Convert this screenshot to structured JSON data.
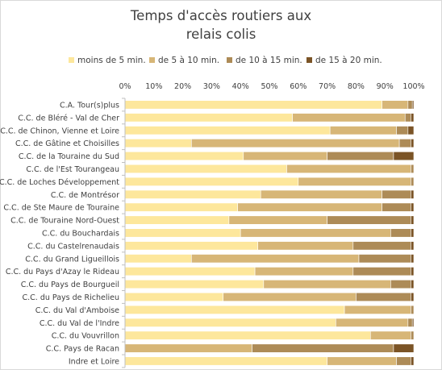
{
  "chart_data": {
    "type": "bar",
    "orientation": "horizontal",
    "stacked": true,
    "percent": true,
    "title": "Temps d'accès routiers aux relais colis",
    "title_lines": [
      "Temps d'accès routiers aux",
      "relais colis"
    ],
    "xlim": [
      0,
      100
    ],
    "x_ticks": [
      "0%",
      "10%",
      "20%",
      "30%",
      "40%",
      "50%",
      "60%",
      "70%",
      "80%",
      "90%",
      "100%"
    ],
    "legend_position": "top",
    "grid": false,
    "categories": [
      "C.A. Tour(s)plus",
      "C.C. de Bléré - Val de Cher",
      "C.C. de Chinon, Vienne et Loire",
      "C.C. de Gâtine et Choisilles",
      "C.C. de la Touraine du Sud",
      "C.C. de l'Est Tourangeau",
      "C.C. de Loches Développement",
      "C.C. de Montrésor",
      "C.C. de Ste Maure de Touraine",
      "C.C. de Touraine Nord-Ouest",
      "C.C. du Bouchardais",
      "C.C. du Castelrenaudais",
      "C.C. du Grand Ligueillois",
      "C.C. du Pays d'Azay le Rideau",
      "C.C. du Pays de Bourgueil",
      "C.C. du Pays de Richelieu",
      "C.C. du Val d'Amboise",
      "C.C. du Val de l'Indre",
      "C.C. du Vouvrillon",
      "C.C. Pays de Racan",
      "Indre et Loire"
    ],
    "series": [
      {
        "name": "moins de 5 min.",
        "color": "#fde79c",
        "values": [
          89,
          58,
          71,
          23,
          41,
          56,
          60,
          47,
          39,
          36,
          40,
          46,
          23,
          45,
          48,
          34,
          76,
          73,
          85,
          0,
          70
        ]
      },
      {
        "name": "de 5 à 10 min.",
        "color": "#d7b677",
        "values": [
          9,
          39,
          23,
          72,
          29,
          43,
          39,
          42,
          50,
          34,
          52,
          33,
          58,
          34,
          44,
          46,
          23,
          25,
          14,
          44,
          24
        ]
      },
      {
        "name": "de 10 à 15 min.",
        "color": "#ad8b57",
        "values": [
          1.5,
          2,
          4,
          4,
          23,
          1,
          1,
          10,
          10,
          29,
          7,
          20,
          18,
          20,
          7,
          19,
          1,
          1.5,
          1,
          49,
          5
        ]
      },
      {
        "name": "de 15 à 20 min.",
        "color": "#7b5426",
        "values": [
          0.5,
          1,
          2,
          1,
          7,
          0,
          0,
          1,
          1,
          1,
          1,
          1,
          1,
          1,
          1,
          1,
          0,
          0.5,
          0,
          7,
          1
        ]
      }
    ]
  }
}
